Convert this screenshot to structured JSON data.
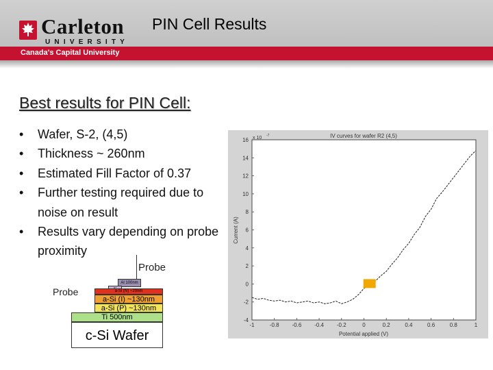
{
  "header": {
    "logo_name": "Carleton",
    "logo_university": "UNIVERSITY",
    "tagline": "Canada's Capital University",
    "title": "PIN Cell Results"
  },
  "subtitle": "Best results for PIN Cell:",
  "bullets": [
    "Wafer, S-2, (4,5)",
    "Thickness ~ 260nm",
    "Estimated Fill Factor of 0.37",
    "Further testing required due to noise on result",
    "Results vary depending on probe proximity"
  ],
  "diagram": {
    "probe_top": "Probe",
    "probe_left": "Probe",
    "layer_al": "Al 100nm",
    "layer_small": "n+",
    "layer_n": "a-Si (N) ~20nm",
    "layer_i": "a-Si (I) ~130nm",
    "layer_p": "a-Si (P) ~130nm",
    "layer_ti": "Ti 500nm",
    "layer_wafer": "c-Si Wafer",
    "colors": {
      "al": "#9b8fb0",
      "n": "#e0301e",
      "i": "#f0a030",
      "p": "#f2e45a",
      "ti": "#aee08a",
      "wafer": "#ffffff"
    }
  },
  "chart_data": {
    "type": "line",
    "title": "IV curves for wafer R2 (4,5)",
    "xlabel": "Potential applied (V)",
    "ylabel": "Current (A)",
    "y_multiplier": "x 10",
    "y_multiplier_exp": "-7",
    "xlim": [
      -1,
      1
    ],
    "ylim": [
      -4,
      16
    ],
    "xticks": [
      "-1",
      "-0.8",
      "-0.6",
      "-0.4",
      "-0.2",
      "0",
      "0.2",
      "0.4",
      "0.6",
      "0.8",
      "1"
    ],
    "xtick_values": [
      -1,
      -0.8,
      -0.6,
      -0.4,
      -0.2,
      0,
      0.2,
      0.4,
      0.6,
      0.8,
      1
    ],
    "yticks": [
      "-4",
      "-2",
      "0",
      "2",
      "4",
      "6",
      "8",
      "10",
      "12",
      "14",
      "16"
    ],
    "ytick_values": [
      -4,
      -2,
      0,
      2,
      4,
      6,
      8,
      10,
      12,
      14,
      16
    ],
    "grid": false,
    "marker_color": "#f0a800",
    "series": [
      {
        "color": "#222222",
        "dash": true,
        "x": [
          -1,
          -0.95,
          -0.9,
          -0.85,
          -0.8,
          -0.75,
          -0.7,
          -0.65,
          -0.6,
          -0.55,
          -0.5,
          -0.45,
          -0.4,
          -0.35,
          -0.3,
          -0.25,
          -0.2,
          -0.15,
          -0.1,
          -0.05,
          0,
          0.05,
          0.1,
          0.15,
          0.2,
          0.25,
          0.3,
          0.35,
          0.4,
          0.45,
          0.5,
          0.55,
          0.6,
          0.65,
          0.7,
          0.75,
          0.8,
          0.85,
          0.9,
          0.95,
          1
        ],
        "y": [
          -1.5,
          -1.7,
          -1.6,
          -1.8,
          -1.9,
          -1.8,
          -2.0,
          -1.9,
          -2.1,
          -2.0,
          -1.9,
          -2.1,
          -2.0,
          -2.2,
          -2.1,
          -1.9,
          -2.2,
          -2.0,
          -1.7,
          -1.2,
          -0.5,
          -0.1,
          0.3,
          0.9,
          1.4,
          2.2,
          2.9,
          3.8,
          4.5,
          5.5,
          6.3,
          7.5,
          8.3,
          9.5,
          10.2,
          11.0,
          11.8,
          12.6,
          13.4,
          14.2,
          14.8
        ]
      }
    ],
    "marker": {
      "x": 0.05,
      "y": 0
    }
  }
}
